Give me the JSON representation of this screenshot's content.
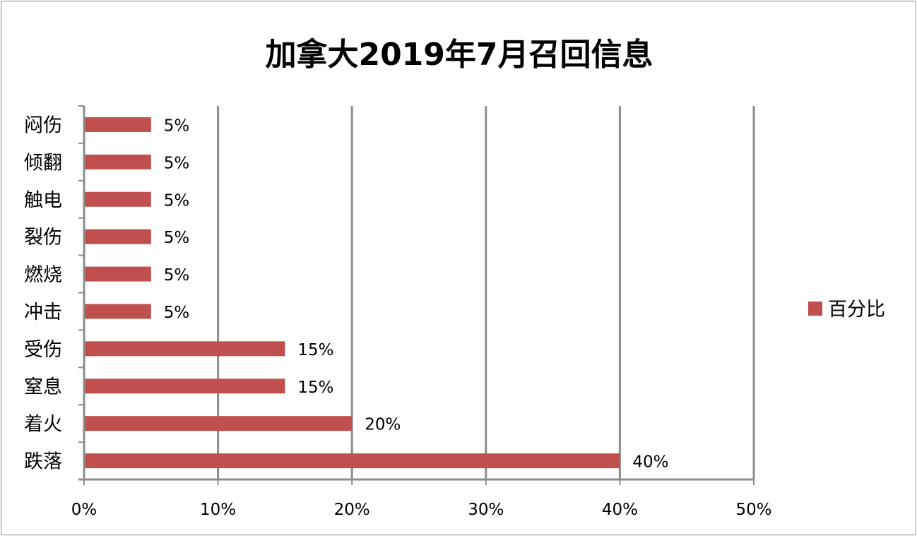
{
  "chart_data": {
    "type": "bar",
    "orientation": "horizontal",
    "title": "加拿大2019年7月召回信息",
    "categories": [
      "跌落",
      "着火",
      "窒息",
      "受伤",
      "冲击",
      "燃烧",
      "裂伤",
      "触电",
      "倾翻",
      "闷伤"
    ],
    "series": [
      {
        "name": "百分比",
        "values": [
          40,
          20,
          15,
          15,
          5,
          5,
          5,
          5,
          5,
          5
        ],
        "color": "#c0504d"
      }
    ],
    "data_labels": [
      "40%",
      "20%",
      "15%",
      "15%",
      "5%",
      "5%",
      "5%",
      "5%",
      "5%",
      "5%"
    ],
    "x_ticks": [
      "0%",
      "10%",
      "20%",
      "30%",
      "40%",
      "50%"
    ],
    "xlim": [
      0,
      50
    ],
    "grid": "vertical",
    "legend": "right"
  }
}
